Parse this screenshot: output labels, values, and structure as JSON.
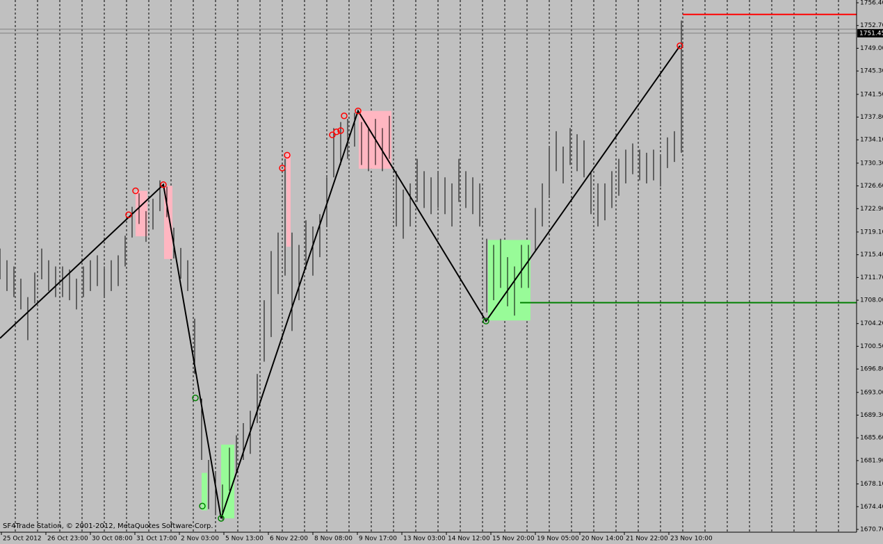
{
  "chart_data": {
    "type": "ohlc",
    "annotation": "SF4Trade Station, © 2001-2012, MetaQuotes Software Corp.",
    "ylim": [
      1670.7,
      1756.4
    ],
    "yticks": [
      {
        "value": 1756.4,
        "label": "1756.40"
      },
      {
        "value": 1752.7,
        "label": "1752.70"
      },
      {
        "value": 1749,
        "label": "1749.00"
      },
      {
        "value": 1745.3,
        "label": "1745.30"
      },
      {
        "value": 1741.5,
        "label": "1741.50"
      },
      {
        "value": 1737.8,
        "label": "1737.80"
      },
      {
        "value": 1734.1,
        "label": "1734.10"
      },
      {
        "value": 1730.3,
        "label": "1730.30"
      },
      {
        "value": 1726.6,
        "label": "1726.60"
      },
      {
        "value": 1722.9,
        "label": "1722.90"
      },
      {
        "value": 1719.1,
        "label": "1719.10"
      },
      {
        "value": 1715.4,
        "label": "1715.40"
      },
      {
        "value": 1711.7,
        "label": "1711.70"
      },
      {
        "value": 1708,
        "label": "1708.00"
      },
      {
        "value": 1704.2,
        "label": "1704.20"
      },
      {
        "value": 1700.5,
        "label": "1700.50"
      },
      {
        "value": 1696.8,
        "label": "1696.80"
      },
      {
        "value": 1693,
        "label": "1693.00"
      },
      {
        "value": 1689.3,
        "label": "1689.30"
      },
      {
        "value": 1685.6,
        "label": "1685.60"
      },
      {
        "value": 1681.9,
        "label": "1681.90"
      },
      {
        "value": 1678.1,
        "label": "1678.10"
      },
      {
        "value": 1674.4,
        "label": "1674.40"
      },
      {
        "value": 1670.7,
        "label": "1670.70"
      }
    ],
    "xlim": [
      0,
      123.2
    ],
    "xticks": [
      {
        "value": 0.2,
        "label": "25 Oct 2012"
      },
      {
        "value": 6.6,
        "label": "26 Oct 23:00"
      },
      {
        "value": 13,
        "label": "30 Oct 08:00"
      },
      {
        "value": 19.4,
        "label": "31 Oct 17:00"
      },
      {
        "value": 25.8,
        "label": "2 Nov 03:00"
      },
      {
        "value": 32.2,
        "label": "5 Nov 13:00"
      },
      {
        "value": 38.6,
        "label": "6 Nov 22:00"
      },
      {
        "value": 45,
        "label": "8 Nov 08:00"
      },
      {
        "value": 51.4,
        "label": "9 Nov 17:00"
      },
      {
        "value": 57.8,
        "label": "13 Nov 03:00"
      },
      {
        "value": 64.2,
        "label": "14 Nov 12:00"
      },
      {
        "value": 70.6,
        "label": "15 Nov 20:00"
      },
      {
        "value": 77,
        "label": "19 Nov 05:00"
      },
      {
        "value": 83.4,
        "label": "20 Nov 14:00"
      },
      {
        "value": 89.8,
        "label": "21 Nov 22:00"
      },
      {
        "value": 96.2,
        "label": "23 Nov 10:00"
      }
    ],
    "bars": {
      "color": "#000000",
      "x": [
        0,
        1,
        2,
        3,
        4,
        5,
        6,
        7,
        8,
        9,
        10,
        11,
        12,
        13,
        14,
        15,
        16,
        17,
        18,
        19,
        20,
        21,
        22,
        23,
        24,
        25,
        26,
        27,
        28,
        29,
        30,
        31,
        32,
        33,
        34,
        35,
        36,
        37,
        38,
        39,
        40,
        41,
        42,
        43,
        44,
        45,
        46,
        47,
        48,
        49,
        50,
        51,
        52,
        53,
        54,
        55,
        56,
        57,
        58,
        59,
        60,
        61,
        62,
        63,
        64,
        65,
        66,
        67,
        68,
        69,
        70,
        71,
        72,
        73,
        74,
        75,
        76,
        77,
        78,
        79,
        80,
        81,
        82,
        83,
        84,
        85,
        86,
        87,
        88,
        89,
        90,
        91,
        92,
        93,
        94,
        95,
        96,
        97,
        98
      ],
      "high": [
        1716.4,
        1714.5,
        1713.5,
        1711.5,
        1708.5,
        1712.5,
        1716.4,
        1714.5,
        1713.5,
        1713.5,
        1713,
        1711.5,
        1713.5,
        1714.5,
        1715.3,
        1713.5,
        1714.5,
        1715.3,
        1718.5,
        1723.2,
        1725.4,
        1722.5,
        1724.5,
        1727.5,
        1726.5,
        1719.8,
        1716.5,
        1714.5,
        1705,
        1692,
        1682,
        1680,
        1678,
        1684,
        1686,
        1688,
        1690,
        1696,
        1708,
        1716,
        1719,
        1731,
        1719,
        1717,
        1721,
        1720,
        1722,
        1728,
        1736,
        1737,
        1737.5,
        1738.5,
        1737,
        1736,
        1737.5,
        1736,
        1738,
        1729,
        1726,
        1727,
        1731,
        1729,
        1728,
        1729,
        1728,
        1727,
        1731,
        1729,
        1728,
        1727,
        1718,
        1717,
        1718,
        1715,
        1713.5,
        1717,
        1717,
        1723,
        1727,
        1733,
        1735.5,
        1733,
        1736,
        1735,
        1734,
        1729,
        1727,
        1727,
        1729,
        1731,
        1732.5,
        1733.5,
        1732.5,
        1732,
        1732.5,
        1731.5,
        1734.5,
        1735.5,
        1753.5
      ],
      "low": [
        1711.4,
        1709.5,
        1708.5,
        1706.5,
        1701.5,
        1707.5,
        1711.4,
        1709.5,
        1708.5,
        1708.5,
        1708,
        1706.5,
        1708.5,
        1709.5,
        1710.3,
        1708.5,
        1709.5,
        1710.3,
        1713.5,
        1718.2,
        1720.4,
        1717.5,
        1719.5,
        1722.5,
        1721.5,
        1714.8,
        1711.5,
        1709.5,
        1696,
        1682,
        1674,
        1673,
        1672.3,
        1677,
        1680,
        1682,
        1683,
        1688,
        1698,
        1702,
        1709,
        1712,
        1703,
        1708,
        1713,
        1712,
        1715,
        1720,
        1728,
        1730,
        1731,
        1733,
        1730,
        1729,
        1730,
        1729,
        1731,
        1720,
        1718,
        1720,
        1724,
        1723,
        1722,
        1723,
        1722,
        1720,
        1724,
        1723,
        1722,
        1720,
        1706,
        1708,
        1710,
        1707,
        1705.5,
        1710,
        1710,
        1716,
        1720,
        1725,
        1729,
        1727,
        1730,
        1729,
        1728,
        1722,
        1720,
        1721,
        1723,
        1725,
        1727,
        1728.5,
        1727.5,
        1727,
        1727.5,
        1726.5,
        1729.5,
        1730.5,
        1732
      ]
    },
    "zones": [
      {
        "x": [
          19.5,
          21.2
        ],
        "y": [
          1718.4,
          1725.8
        ],
        "color": "#ffb6c1"
      },
      {
        "x": [
          23.6,
          24.8
        ],
        "y": [
          1714.7,
          1726.6
        ],
        "color": "#ffb6c1"
      },
      {
        "x": [
          41.2,
          41.8
        ],
        "y": [
          1716.7,
          1731.9
        ],
        "color": "#ffb6c1"
      },
      {
        "x": [
          51.6,
          56.3
        ],
        "y": [
          1729.4,
          1738.8
        ],
        "color": "#ffb6c1"
      },
      {
        "x": [
          29.0,
          29.8
        ],
        "y": [
          1673.8,
          1679.9
        ],
        "color": "#98fb98"
      },
      {
        "x": [
          31.8,
          33.7
        ],
        "y": [
          1672.5,
          1684.5
        ],
        "color": "#98fb98"
      },
      {
        "x": [
          70.2,
          76.3
        ],
        "y": [
          1704.7,
          1717.8
        ],
        "color": "#98fb98"
      }
    ],
    "zigzag": {
      "color": "#000000",
      "x": [
        0,
        23.5,
        31.8,
        51.5,
        69.9,
        97.8
      ],
      "y": [
        1701.8,
        1726.8,
        1672.5,
        1738.8,
        1704.6,
        1749.4
      ]
    },
    "markers": [
      {
        "color": "#ff0000",
        "x": [
          18.5,
          19.5,
          23.5,
          40.6,
          41.3,
          47.8,
          48.4,
          49.0,
          49.5,
          51.5,
          97.8
        ],
        "y": [
          1721.9,
          1725.8,
          1726.8,
          1729.5,
          1731.6,
          1734.9,
          1735.4,
          1735.6,
          1738.0,
          1738.8,
          1749.4
        ]
      },
      {
        "color": "#008000",
        "x": [
          28.1,
          29.1,
          31.8,
          69.9
        ],
        "y": [
          1692.1,
          1674.5,
          1672.5,
          1704.6
        ]
      }
    ],
    "levels": [
      {
        "color": "#ff0000",
        "from": 98.2,
        "value": 1754.5
      },
      {
        "color": "#008000",
        "from": 74.8,
        "value": 1707.6
      }
    ],
    "price_lines": {
      "color": "#808080",
      "values": [
        1752.1,
        1751.45
      ]
    },
    "current_price": 1751.45
  }
}
